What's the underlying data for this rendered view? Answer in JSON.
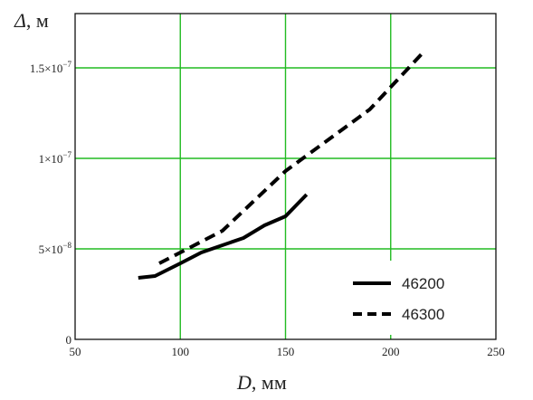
{
  "chart_data": {
    "type": "line",
    "title": "",
    "xlabel": {
      "symbol": "D",
      "unit": ", мм"
    },
    "ylabel": {
      "symbol": "Δ",
      "unit": ", м"
    },
    "xlim": [
      50,
      250
    ],
    "ylim": [
      0,
      1.8e-07
    ],
    "grid": true,
    "grid_color": "#22bb22",
    "x_ticks": [
      {
        "value": 50,
        "label": "50"
      },
      {
        "value": 100,
        "label": "100"
      },
      {
        "value": 150,
        "label": "150"
      },
      {
        "value": 200,
        "label": "200"
      },
      {
        "value": 250,
        "label": "250"
      }
    ],
    "y_ticks": [
      {
        "value": 0,
        "label": "0",
        "exp": ""
      },
      {
        "value": 5e-08,
        "label": "5×10",
        "exp": "−8"
      },
      {
        "value": 1e-07,
        "label": "1×10",
        "exp": "−7"
      },
      {
        "value": 1.5e-07,
        "label": "1.5×10",
        "exp": "−7"
      }
    ],
    "legend_position": "bottom-right",
    "series": [
      {
        "name": "46200",
        "style": "solid",
        "color": "#000000",
        "x": [
          80,
          88,
          100,
          110,
          130,
          140,
          150,
          160
        ],
        "y": [
          3.4e-08,
          3.5e-08,
          4.2e-08,
          4.8e-08,
          5.6e-08,
          6.3e-08,
          6.8e-08,
          8e-08
        ]
      },
      {
        "name": "46300",
        "style": "dashed",
        "color": "#000000",
        "x": [
          90,
          100,
          120,
          150,
          170,
          190,
          215
        ],
        "y": [
          4.2e-08,
          4.8e-08,
          6e-08,
          9.3e-08,
          1.1e-07,
          1.27e-07,
          1.58e-07
        ]
      }
    ]
  }
}
